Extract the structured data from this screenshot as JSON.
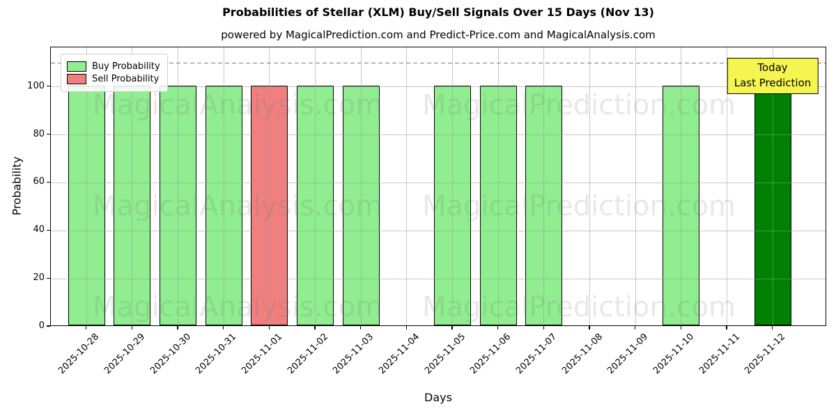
{
  "title": "Probabilities of Stellar (XLM) Buy/Sell Signals Over 15 Days (Nov 13)",
  "subtitle": "powered by MagicalPrediction.com and Predict-Price.com and MagicalAnalysis.com",
  "legend": [
    {
      "label": "Buy Probability",
      "color": "#90EE90"
    },
    {
      "label": "Sell Probability",
      "color": "#F08080"
    }
  ],
  "annotation": {
    "line1": "Today",
    "line2": "Last Prediction",
    "bg": "#F5F551"
  },
  "watermarks": {
    "left": "MagicalAnalysis.com",
    "right": "MagicalPrediction.com"
  },
  "chart_data": {
    "type": "bar",
    "title": "Probabilities of Stellar (XLM) Buy/Sell Signals Over 15 Days (Nov 13)",
    "xlabel": "Days",
    "ylabel": "Probability",
    "categories": [
      "2025-10-28",
      "2025-10-29",
      "2025-10-30",
      "2025-10-31",
      "2025-11-01",
      "2025-11-02",
      "2025-11-03",
      "2025-11-04",
      "2025-11-05",
      "2025-11-06",
      "2025-11-07",
      "2025-11-08",
      "2025-11-09",
      "2025-11-10",
      "2025-11-11",
      "2025-11-12"
    ],
    "series": [
      {
        "name": "Buy Probability",
        "color": "#90EE90",
        "values": [
          100,
          100,
          100,
          100,
          0,
          100,
          100,
          0,
          100,
          100,
          100,
          0,
          0,
          100,
          0,
          100
        ]
      },
      {
        "name": "Sell Probability",
        "color": "#F08080",
        "values": [
          0,
          0,
          0,
          0,
          100,
          0,
          0,
          0,
          0,
          0,
          0,
          0,
          0,
          0,
          0,
          0
        ]
      }
    ],
    "today_bar": {
      "index": 15,
      "color": "#008000",
      "label": "Today Last Prediction"
    },
    "yticks": [
      0,
      20,
      40,
      60,
      80,
      100
    ],
    "ylim": [
      0,
      116.5
    ],
    "dashed_line_y": 110,
    "grid": true,
    "legend_position": "upper left"
  }
}
